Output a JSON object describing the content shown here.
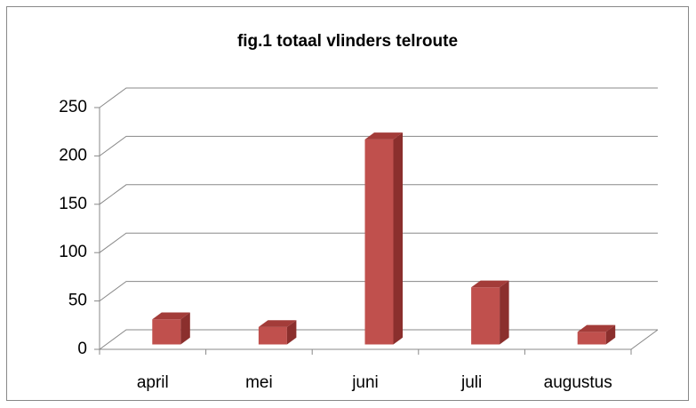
{
  "chart_data": {
    "type": "bar",
    "title": "fig.1  totaal vlinders telroute",
    "categories": [
      "april",
      "mei",
      "juni",
      "juli",
      "augustus"
    ],
    "values": [
      26,
      18,
      212,
      59,
      13
    ],
    "color": "#c0504d",
    "ylim": [
      0,
      250
    ],
    "yticks": [
      0,
      50,
      100,
      150,
      200,
      250
    ],
    "grid": true
  }
}
